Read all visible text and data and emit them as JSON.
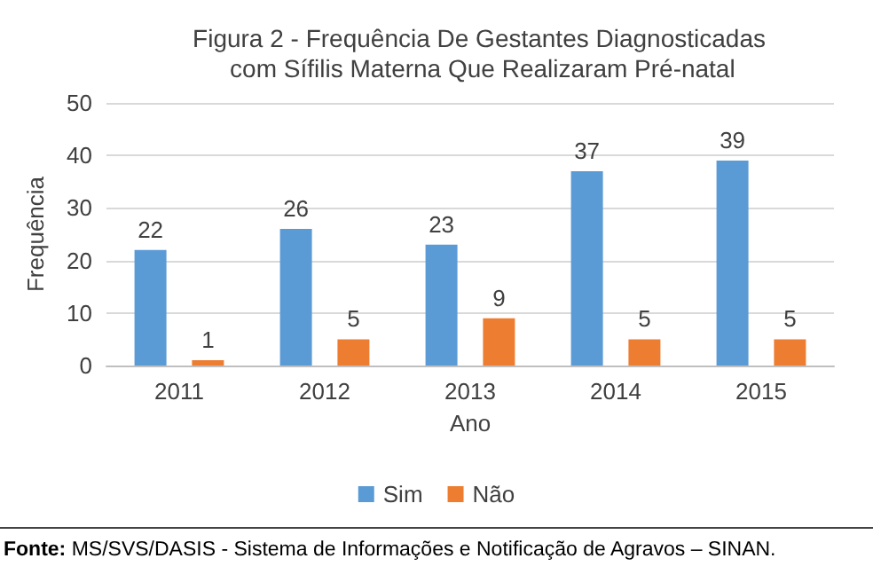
{
  "chart_data": {
    "type": "bar",
    "title": "Figura 2 - Frequência De Gestantes Diagnosticadas com Sífilis Materna Que Realizaram Pré-natal",
    "xlabel": "Ano",
    "ylabel": "Frequência",
    "categories": [
      "2011",
      "2012",
      "2013",
      "2014",
      "2015"
    ],
    "series": [
      {
        "name": "Sim",
        "color": "#5b9bd5",
        "values": [
          22,
          26,
          23,
          37,
          39
        ]
      },
      {
        "name": "Não",
        "color": "#ed7d31",
        "values": [
          1,
          5,
          9,
          5,
          5
        ]
      }
    ],
    "ylim": [
      0,
      50
    ],
    "yticks": [
      0,
      10,
      20,
      30,
      40,
      50
    ],
    "grid": "y",
    "legend": "bottom",
    "data_labels": true,
    "annotations": [
      "Fonte: MS/SVS/DASIS - Sistema de Informações e Notificação de Agravos – SINAN."
    ]
  }
}
